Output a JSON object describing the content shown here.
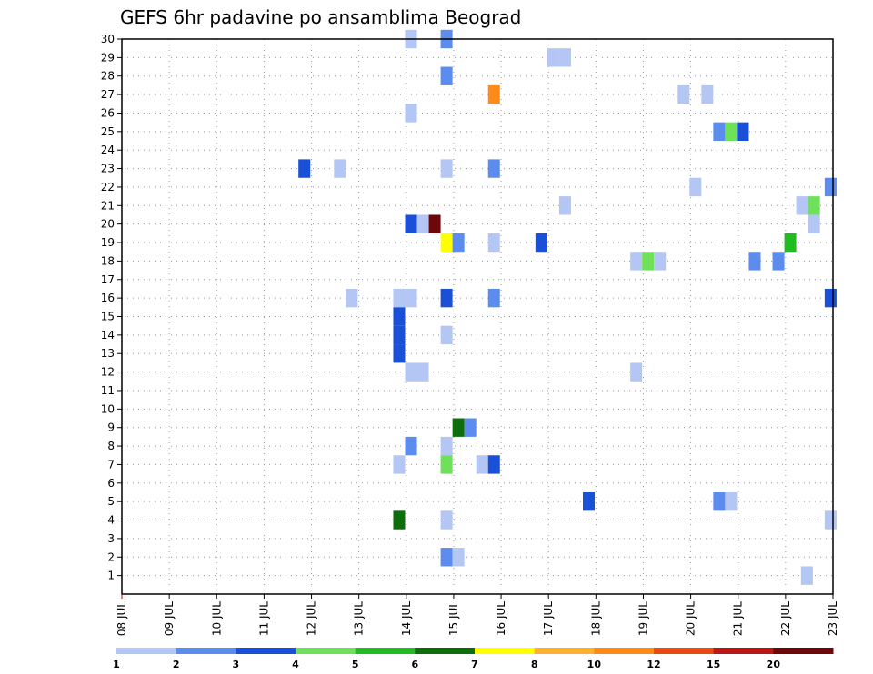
{
  "chart_data": {
    "type": "heatmap",
    "title": "GEFS 6hr padavine po ansamblima Beograd",
    "x_labels": [
      "08 JUL",
      "09 JUL",
      "10 JUL",
      "11 JUL",
      "12 JUL",
      "13 JUL",
      "14 JUL",
      "15 JUL",
      "16 JUL",
      "17 JUL",
      "18 JUL",
      "19 JUL",
      "20 JUL",
      "21 JUL",
      "22 JUL",
      "23 JUL"
    ],
    "y_labels": [
      "1",
      "2",
      "3",
      "4",
      "5",
      "6",
      "7",
      "8",
      "9",
      "10",
      "11",
      "12",
      "13",
      "14",
      "15",
      "16",
      "17",
      "18",
      "19",
      "20",
      "21",
      "22",
      "23",
      "24",
      "25",
      "26",
      "27",
      "28",
      "29",
      "30"
    ],
    "y_range": [
      0,
      30
    ],
    "x_range_days": [
      0,
      15
    ],
    "grid": true,
    "colorbar": {
      "labels": [
        "1",
        "2",
        "3",
        "4",
        "5",
        "6",
        "7",
        "8",
        "10",
        "12",
        "15",
        "20"
      ],
      "colors": [
        "#b4c6f4",
        "#5b8cee",
        "#1a4fd8",
        "#6fe05a",
        "#22bb22",
        "#0e6e0e",
        "#ffff00",
        "#ffb030",
        "#ff8a1a",
        "#e84a14",
        "#b81818",
        "#6e0808"
      ]
    },
    "cells": [
      {
        "x": 6.1,
        "m": 30,
        "c": 0
      },
      {
        "x": 6.85,
        "m": 30,
        "c": 1
      },
      {
        "x": 9.1,
        "m": 29,
        "c": 0
      },
      {
        "x": 9.35,
        "m": 29,
        "c": 0
      },
      {
        "x": 6.85,
        "m": 28,
        "c": 1
      },
      {
        "x": 7.85,
        "m": 27,
        "c": 8
      },
      {
        "x": 11.85,
        "m": 27,
        "c": 0
      },
      {
        "x": 12.35,
        "m": 27,
        "c": 0
      },
      {
        "x": 6.1,
        "m": 26,
        "c": 0
      },
      {
        "x": 12.6,
        "m": 25,
        "c": 1
      },
      {
        "x": 12.85,
        "m": 25,
        "c": 3
      },
      {
        "x": 13.1,
        "m": 25,
        "c": 2
      },
      {
        "x": 3.85,
        "m": 23,
        "c": 2
      },
      {
        "x": 4.6,
        "m": 23,
        "c": 0
      },
      {
        "x": 6.85,
        "m": 23,
        "c": 0
      },
      {
        "x": 7.85,
        "m": 23,
        "c": 1
      },
      {
        "x": 12.1,
        "m": 22,
        "c": 0
      },
      {
        "x": 14.95,
        "m": 22,
        "c": 1
      },
      {
        "x": 9.35,
        "m": 21,
        "c": 0
      },
      {
        "x": 14.35,
        "m": 21,
        "c": 0
      },
      {
        "x": 14.6,
        "m": 21,
        "c": 3
      },
      {
        "x": 6.1,
        "m": 20,
        "c": 2
      },
      {
        "x": 6.35,
        "m": 20,
        "c": 0
      },
      {
        "x": 6.6,
        "m": 20,
        "c": 11
      },
      {
        "x": 14.6,
        "m": 20,
        "c": 0
      },
      {
        "x": 6.85,
        "m": 19,
        "c": 6
      },
      {
        "x": 7.1,
        "m": 19,
        "c": 1
      },
      {
        "x": 7.85,
        "m": 19,
        "c": 0
      },
      {
        "x": 8.85,
        "m": 19,
        "c": 2
      },
      {
        "x": 14.1,
        "m": 19,
        "c": 4
      },
      {
        "x": 10.85,
        "m": 18,
        "c": 0
      },
      {
        "x": 11.1,
        "m": 18,
        "c": 3
      },
      {
        "x": 11.35,
        "m": 18,
        "c": 0
      },
      {
        "x": 13.35,
        "m": 18,
        "c": 1
      },
      {
        "x": 13.85,
        "m": 18,
        "c": 1
      },
      {
        "x": 4.85,
        "m": 16,
        "c": 0
      },
      {
        "x": 5.85,
        "m": 16,
        "c": 0
      },
      {
        "x": 6.1,
        "m": 16,
        "c": 0
      },
      {
        "x": 6.85,
        "m": 16,
        "c": 2
      },
      {
        "x": 7.85,
        "m": 16,
        "c": 1
      },
      {
        "x": 14.95,
        "m": 16,
        "c": 2
      },
      {
        "x": 5.85,
        "m": 15,
        "c": 2
      },
      {
        "x": 5.85,
        "m": 14,
        "c": 2
      },
      {
        "x": 5.85,
        "m": 13,
        "c": 2
      },
      {
        "x": 6.85,
        "m": 14,
        "c": 0
      },
      {
        "x": 6.1,
        "m": 12,
        "c": 0
      },
      {
        "x": 6.35,
        "m": 12,
        "c": 0
      },
      {
        "x": 10.85,
        "m": 12,
        "c": 0
      },
      {
        "x": 7.1,
        "m": 9,
        "c": 5
      },
      {
        "x": 7.35,
        "m": 9,
        "c": 1
      },
      {
        "x": 6.1,
        "m": 8,
        "c": 1
      },
      {
        "x": 6.85,
        "m": 8,
        "c": 0
      },
      {
        "x": 5.85,
        "m": 7,
        "c": 0
      },
      {
        "x": 6.85,
        "m": 7,
        "c": 3
      },
      {
        "x": 7.6,
        "m": 7,
        "c": 0
      },
      {
        "x": 7.85,
        "m": 7,
        "c": 2
      },
      {
        "x": 9.85,
        "m": 5,
        "c": 2
      },
      {
        "x": 12.6,
        "m": 5,
        "c": 1
      },
      {
        "x": 12.85,
        "m": 5,
        "c": 0
      },
      {
        "x": 5.85,
        "m": 4,
        "c": 5
      },
      {
        "x": 6.85,
        "m": 4,
        "c": 0
      },
      {
        "x": 14.95,
        "m": 4,
        "c": 0
      },
      {
        "x": 6.85,
        "m": 2,
        "c": 1
      },
      {
        "x": 7.1,
        "m": 2,
        "c": 0
      },
      {
        "x": 14.45,
        "m": 1,
        "c": 0
      }
    ]
  }
}
